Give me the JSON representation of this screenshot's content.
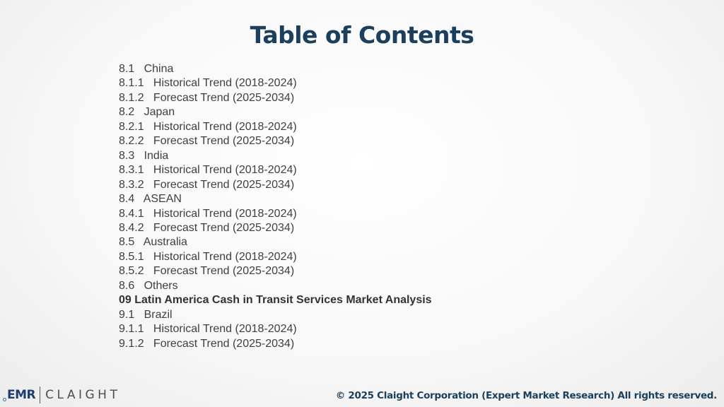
{
  "title": "Table of Contents",
  "toc": [
    {
      "text": "8.1   China",
      "bold": false
    },
    {
      "text": "8.1.1   Historical Trend (2018-2024)",
      "bold": false
    },
    {
      "text": "8.1.2   Forecast Trend (2025-2034)",
      "bold": false
    },
    {
      "text": "8.2   Japan",
      "bold": false
    },
    {
      "text": "8.2.1   Historical Trend (2018-2024)",
      "bold": false
    },
    {
      "text": "8.2.2   Forecast Trend (2025-2034)",
      "bold": false
    },
    {
      "text": "8.3   India",
      "bold": false
    },
    {
      "text": "8.3.1   Historical Trend (2018-2024)",
      "bold": false
    },
    {
      "text": "8.3.2   Forecast Trend (2025-2034)",
      "bold": false
    },
    {
      "text": "8.4   ASEAN",
      "bold": false
    },
    {
      "text": "8.4.1   Historical Trend (2018-2024)",
      "bold": false
    },
    {
      "text": "8.4.2   Forecast Trend (2025-2034)",
      "bold": false
    },
    {
      "text": "8.5   Australia",
      "bold": false
    },
    {
      "text": "8.5.1   Historical Trend (2018-2024)",
      "bold": false
    },
    {
      "text": "8.5.2   Forecast Trend (2025-2034)",
      "bold": false
    },
    {
      "text": "8.6   Others",
      "bold": false
    },
    {
      "text": "09 Latin America Cash in Transit Services Market Analysis",
      "bold": true
    },
    {
      "text": "9.1   Brazil",
      "bold": false
    },
    {
      "text": "9.1.1   Historical Trend (2018-2024)",
      "bold": false
    },
    {
      "text": "9.1.2   Forecast Trend (2025-2034)",
      "bold": false
    }
  ],
  "logo": {
    "emr": "EMR",
    "claight": "CLAIGHT"
  },
  "copyright": "© 2025 Claight Corporation (Expert Market Research) All rights reserved.",
  "colors": {
    "title": "#1b3f5c",
    "body_text": "#3f3f3f",
    "logo_blue": "#1e3c6e"
  }
}
